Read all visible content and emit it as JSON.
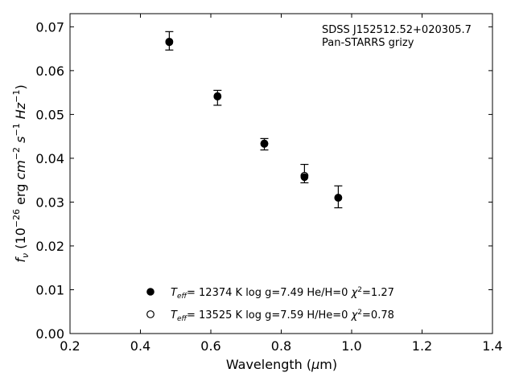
{
  "chart_data": {
    "type": "scatter",
    "title": "",
    "annotation": [
      "SDSS J152512.52+020305.7",
      "Pan-STARRS grizy"
    ],
    "xlabel": "Wavelength (μm)",
    "xlim": [
      0.2,
      1.4
    ],
    "ylim": [
      0.0,
      0.073
    ],
    "xticks": [
      0.2,
      0.4,
      0.6,
      0.8,
      1.0,
      1.2,
      1.4
    ],
    "yticks": [
      0.0,
      0.01,
      0.02,
      0.03,
      0.04,
      0.05,
      0.06,
      0.07
    ],
    "xtick_labels": [
      "0.2",
      "0.4",
      "0.6",
      "0.8",
      "1.0",
      "1.2",
      "1.4"
    ],
    "ytick_labels": [
      "0.00",
      "0.01",
      "0.02",
      "0.03",
      "0.04",
      "0.05",
      "0.06",
      "0.07"
    ],
    "observed": {
      "x": [
        0.482,
        0.619,
        0.752,
        0.866,
        0.962
      ],
      "y": [
        0.0668,
        0.0538,
        0.0432,
        0.0365,
        0.0312
      ],
      "yerr": [
        0.0021,
        0.0017,
        0.0013,
        0.0021,
        0.0025
      ]
    },
    "series": [
      {
        "marker": "filled-circle",
        "x": [
          0.482,
          0.619,
          0.752,
          0.866,
          0.962
        ],
        "y": [
          0.0665,
          0.0542,
          0.0434,
          0.0357,
          0.031
        ]
      },
      {
        "marker": "open-circle",
        "x": [
          0.482,
          0.619,
          0.752,
          0.866,
          0.962
        ],
        "y": [
          0.0666,
          0.0541,
          0.0433,
          0.036,
          0.031
        ]
      }
    ],
    "legend": {
      "placement": "lower-center",
      "entries": [
        {
          "marker": "filled-circle",
          "teff_value": "= 12374 K",
          "params": "log g=7.49  He/H=0",
          "chi2": "=1.27"
        },
        {
          "marker": "open-circle",
          "teff_value": "= 13525 K",
          "params": "log g=7.59  H/He=0",
          "chi2": "=0.78"
        }
      ]
    },
    "grid": false,
    "colors": {
      "marker": "#000000",
      "background": "#ffffff"
    }
  }
}
